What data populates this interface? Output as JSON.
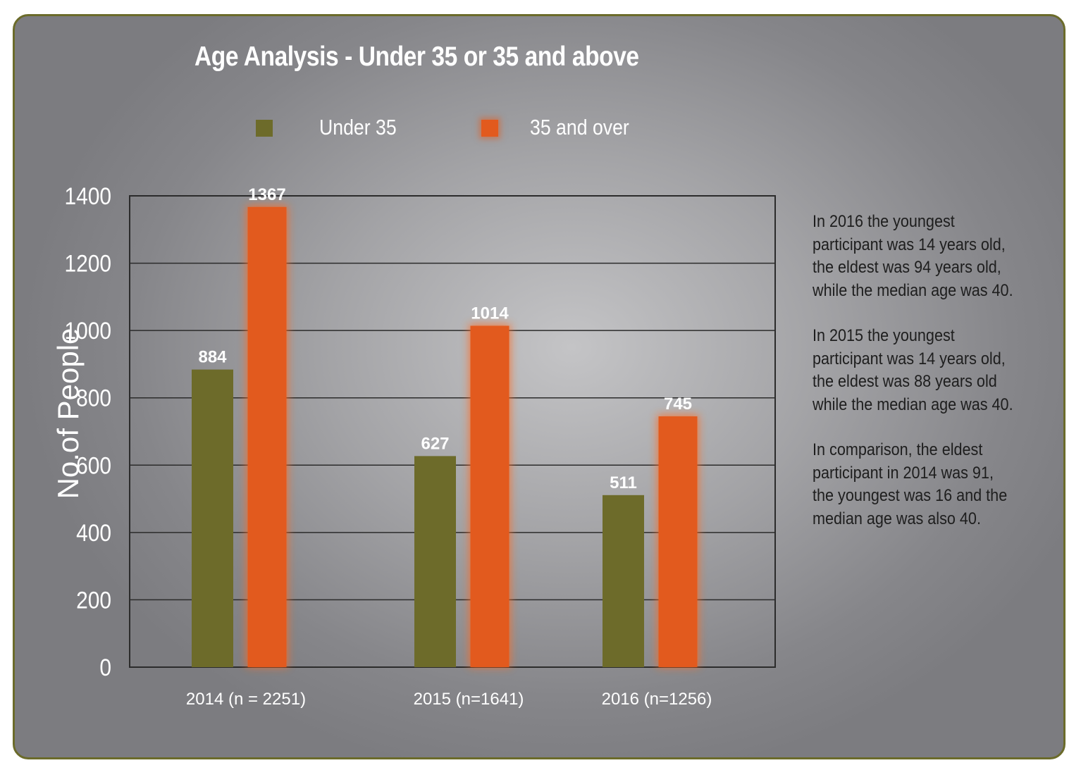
{
  "colors": {
    "under35": "#6d6b2a",
    "over35": "#e25a1e",
    "grid": "#2b2b2b"
  },
  "chart_data": {
    "type": "bar",
    "title": "Age Analysis - Under 35 or 35 and above",
    "ylabel": "No.of People",
    "xlabel": "",
    "ylim": [
      0,
      1400
    ],
    "yticks": [
      0,
      200,
      400,
      600,
      800,
      1000,
      1200,
      1400
    ],
    "grid": true,
    "legend_position": "top",
    "categories": [
      "2014 (n = 2251)",
      "2015 (n=1641)",
      "2016 (n=1256)"
    ],
    "series": [
      {
        "name": "Under 35",
        "values": [
          884,
          627,
          511
        ],
        "labels": [
          "884",
          "627",
          "511"
        ]
      },
      {
        "name": "35 and over",
        "values": [
          1367,
          1014,
          745
        ],
        "labels": [
          "1367",
          "1014",
          "745"
        ]
      }
    ]
  },
  "notes": [
    {
      "lines": [
        "In 2016 the youngest",
        "participant was 14 years old,",
        "the eldest was 94 years old,",
        "while the median age was 40."
      ]
    },
    {
      "lines": [
        "In 2015 the youngest",
        "participant was 14 years old,",
        "the eldest was 88 years old",
        "while the median age was 40."
      ]
    },
    {
      "lines": [
        "In comparison, the eldest",
        "participant in 2014 was 91,",
        "the youngest was 16 and the",
        "median age was also 40."
      ]
    }
  ]
}
